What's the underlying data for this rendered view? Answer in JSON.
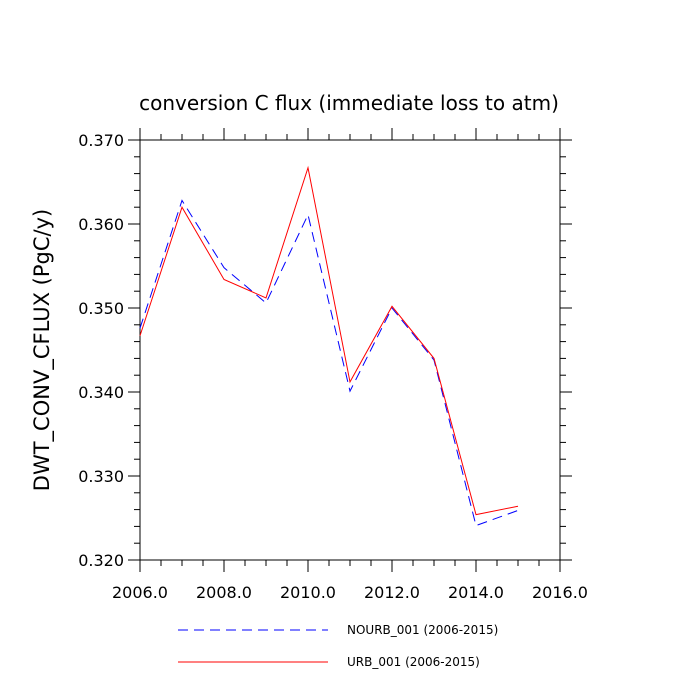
{
  "chart_data": {
    "type": "line",
    "title": "conversion C flux (immediate loss to atm)",
    "xlabel": "",
    "ylabel": "DWT_CONV_CFLUX  (PgC/y)",
    "xlim": [
      2006.0,
      2016.0
    ],
    "ylim": [
      0.32,
      0.37
    ],
    "x_ticks": [
      2006.0,
      2008.0,
      2010.0,
      2012.0,
      2014.0,
      2016.0
    ],
    "x_tick_labels": [
      "2006.0",
      "2008.0",
      "2010.0",
      "2012.0",
      "2014.0",
      "2016.0"
    ],
    "y_ticks": [
      0.32,
      0.33,
      0.34,
      0.35,
      0.36,
      0.37
    ],
    "y_tick_labels": [
      "0.320",
      "0.330",
      "0.340",
      "0.350",
      "0.360",
      "0.370"
    ],
    "grid": false,
    "legend_position": "bottom",
    "x": [
      2006,
      2007,
      2008,
      2009,
      2010,
      2011,
      2012,
      2013,
      2014,
      2015
    ],
    "series": [
      {
        "name": "NOURB_001 (2006-2015)",
        "color": "#0000ff",
        "style": "dashed",
        "values": [
          0.3476,
          0.3628,
          0.3548,
          0.3506,
          0.3611,
          0.3401,
          0.35,
          0.3438,
          0.3241,
          0.3259
        ]
      },
      {
        "name": "URB_001 (2006-2015)",
        "color": "#ff0000",
        "style": "solid",
        "values": [
          0.3467,
          0.362,
          0.3534,
          0.3512,
          0.3667,
          0.3412,
          0.3502,
          0.344,
          0.3254,
          0.3264
        ]
      }
    ]
  }
}
